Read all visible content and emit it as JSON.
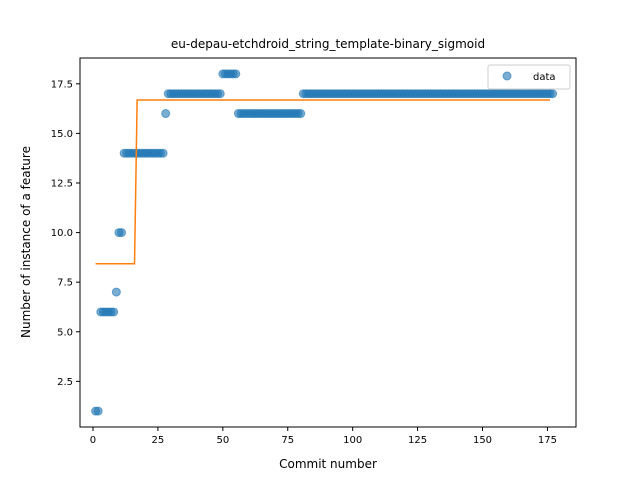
{
  "chart_data": {
    "type": "scatter",
    "title": "eu-depau-etchdroid_string_template-binary_sigmoid",
    "xlabel": "Commit number",
    "ylabel": "Number of instance of a feature",
    "xlim": [
      -5,
      186
    ],
    "ylim": [
      0.2,
      18.8
    ],
    "xticks": [
      0,
      25,
      50,
      75,
      100,
      125,
      150,
      175
    ],
    "yticks": [
      2.5,
      5.0,
      7.5,
      10.0,
      12.5,
      15.0,
      17.5
    ],
    "ytick_labels": [
      "2.5",
      "5.0",
      "7.5",
      "10.0",
      "12.5",
      "15.0",
      "17.5"
    ],
    "legend": {
      "position": "top-right",
      "entries": [
        "data"
      ]
    },
    "colors": {
      "data": "#1f77b4",
      "fit": "#ff7f0e"
    },
    "series": [
      {
        "name": "data",
        "kind": "scatter",
        "segments": [
          {
            "x_from": 1,
            "x_to": 2,
            "y": 1
          },
          {
            "x_from": 3,
            "x_to": 8,
            "y": 6
          },
          {
            "x_from": 9,
            "x_to": 9,
            "y": 7
          },
          {
            "x_from": 10,
            "x_to": 11,
            "y": 10
          },
          {
            "x_from": 12,
            "x_to": 27,
            "y": 14
          },
          {
            "x_from": 28,
            "x_to": 28,
            "y": 16
          },
          {
            "x_from": 29,
            "x_to": 49,
            "y": 17
          },
          {
            "x_from": 50,
            "x_to": 55,
            "y": 18
          },
          {
            "x_from": 56,
            "x_to": 80,
            "y": 16
          },
          {
            "x_from": 81,
            "x_to": 177,
            "y": 17
          }
        ]
      },
      {
        "kind": "line",
        "x": [
          1,
          16,
          17,
          176
        ],
        "y": [
          8.43,
          8.43,
          16.68,
          16.68
        ]
      }
    ]
  }
}
